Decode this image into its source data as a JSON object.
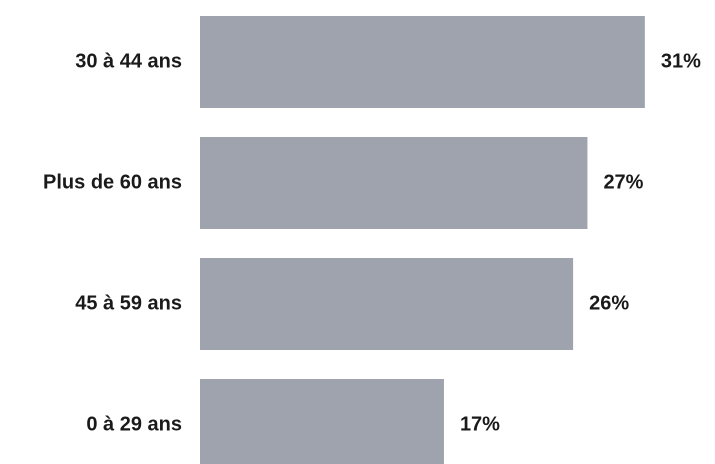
{
  "chart_data": {
    "type": "bar",
    "orientation": "horizontal",
    "categories": [
      "30 à 44 ans",
      "Plus de 60 ans",
      "45 à 59 ans",
      "0 à 29 ans"
    ],
    "values": [
      31,
      27,
      26,
      17
    ],
    "value_labels": [
      "31%",
      "27%",
      "26%",
      "17%"
    ],
    "color": "#9ea3ae"
  }
}
